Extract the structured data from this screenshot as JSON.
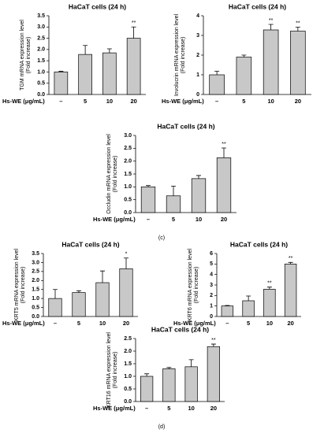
{
  "chart_data": [
    {
      "type": "bar",
      "title": "HaCaT cells (24 h)",
      "ylabel": [
        "TGM mRNA expression level",
        "(Fold increase)"
      ],
      "xlabel": "Hs-WE (μg/mL)",
      "categories": [
        "–",
        "5",
        "10",
        "20"
      ],
      "values": [
        1.0,
        1.78,
        1.85,
        2.5
      ],
      "errors": [
        0.03,
        0.4,
        0.18,
        0.5
      ],
      "significance": [
        null,
        null,
        null,
        "**"
      ],
      "color": "#c8c8c8",
      "ylim": [
        0,
        3.5
      ],
      "yticks": [
        {
          "value": 0,
          "label": "0.0"
        },
        {
          "value": 0.5,
          "label": "0.5"
        },
        {
          "value": 1,
          "label": "1.0"
        },
        {
          "value": 1.5,
          "label": "1.5"
        },
        {
          "value": 2,
          "label": "2.0"
        },
        {
          "value": 2.5,
          "label": "2.5"
        },
        {
          "value": 3,
          "label": "3.0"
        },
        {
          "value": 3.5,
          "label": "3.5"
        }
      ]
    },
    {
      "type": "bar",
      "title": "HaCaT cells (24 h)",
      "ylabel": [
        "Involucrin mRNA expression level",
        "(Fold increase)"
      ],
      "xlabel": "Hs-WE (μg/mL)",
      "categories": [
        "–",
        "5",
        "10",
        "20"
      ],
      "values": [
        1.0,
        1.9,
        3.28,
        3.22
      ],
      "errors": [
        0.18,
        0.1,
        0.28,
        0.2
      ],
      "significance": [
        null,
        null,
        "**",
        "**"
      ],
      "color": "#c8c8c8",
      "ylim": [
        0,
        4
      ],
      "yticks": [
        0,
        1,
        2,
        3,
        4
      ]
    },
    {
      "type": "bar",
      "title": "HaCaT cells (24 h)",
      "ylabel": [
        "Occludin mRNA expression level",
        "(Fold increase)"
      ],
      "xlabel": "Hs-WE (μg/mL)",
      "categories": [
        "–",
        "5",
        "10",
        "20"
      ],
      "values": [
        1.0,
        0.65,
        1.32,
        2.13
      ],
      "errors": [
        0.05,
        0.38,
        0.12,
        0.38
      ],
      "significance": [
        null,
        null,
        null,
        "**"
      ],
      "color": "#c8c8c8",
      "ylim": [
        0,
        3
      ],
      "yticks": [
        {
          "value": 0,
          "label": "0.0"
        },
        {
          "value": 0.5,
          "label": "0.5"
        },
        {
          "value": 1,
          "label": "1.0"
        },
        {
          "value": 1.5,
          "label": "1.5"
        },
        {
          "value": 2,
          "label": "2.0"
        },
        {
          "value": 2.5,
          "label": "2.5"
        },
        {
          "value": 3,
          "label": "3.0"
        }
      ],
      "panel_label": "(c)"
    },
    {
      "type": "bar",
      "title": "HaCaT cells (24 h)",
      "ylabel": [
        "KRT5 mRNA expression level",
        "(Fold increase)"
      ],
      "xlabel": "Hs-WE (μg/mL)",
      "categories": [
        "–",
        "5",
        "10",
        "20"
      ],
      "values": [
        1.0,
        1.33,
        1.88,
        2.65
      ],
      "errors": [
        0.5,
        0.1,
        0.65,
        0.6
      ],
      "significance": [
        null,
        null,
        null,
        "*"
      ],
      "color": "#c8c8c8",
      "ylim": [
        0,
        3.5
      ],
      "yticks": [
        {
          "value": 0,
          "label": "0.0"
        },
        {
          "value": 0.5,
          "label": "0.5"
        },
        {
          "value": 1,
          "label": "1.0"
        },
        {
          "value": 1.5,
          "label": "1.5"
        },
        {
          "value": 2,
          "label": "2.0"
        },
        {
          "value": 2.5,
          "label": "2.5"
        },
        {
          "value": 3,
          "label": "3.0"
        },
        {
          "value": 3.5,
          "label": "3.5"
        }
      ]
    },
    {
      "type": "bar",
      "title": "HaCaT cells (24 h)",
      "ylabel": [
        "KRT6 mRNA expression level",
        "(Fold increase)"
      ],
      "xlabel": "Hs-WE (μg/mL)",
      "categories": [
        "–",
        "5",
        "10",
        "20"
      ],
      "values": [
        1.0,
        1.5,
        2.6,
        5.0
      ],
      "errors": [
        0.05,
        0.45,
        0.2,
        0.15
      ],
      "significance": [
        null,
        null,
        "**",
        "**"
      ],
      "color": "#c8c8c8",
      "ylim": [
        0,
        6
      ],
      "yticks": [
        0,
        1,
        2,
        3,
        4,
        5,
        6
      ]
    },
    {
      "type": "bar",
      "title": "HaCaT cells (24 h)",
      "ylabel": [
        "KRT16 mRNA expression level",
        "(Fold increase)"
      ],
      "xlabel": "Hs-WE (μg/mL)",
      "categories": [
        "–",
        "5",
        "10",
        "20"
      ],
      "values": [
        1.0,
        1.3,
        1.38,
        2.18
      ],
      "errors": [
        0.1,
        0.05,
        0.28,
        0.1
      ],
      "significance": [
        null,
        null,
        null,
        "**"
      ],
      "color": "#c8c8c8",
      "ylim": [
        0,
        2.5
      ],
      "yticks": [
        {
          "value": 0,
          "label": "0.0"
        },
        {
          "value": 0.5,
          "label": "0.5"
        },
        {
          "value": 1,
          "label": "1.0"
        },
        {
          "value": 1.5,
          "label": "1.5"
        },
        {
          "value": 2,
          "label": "2.0"
        },
        {
          "value": 2.5,
          "label": "2.5"
        }
      ],
      "panel_label": "(d)"
    }
  ]
}
